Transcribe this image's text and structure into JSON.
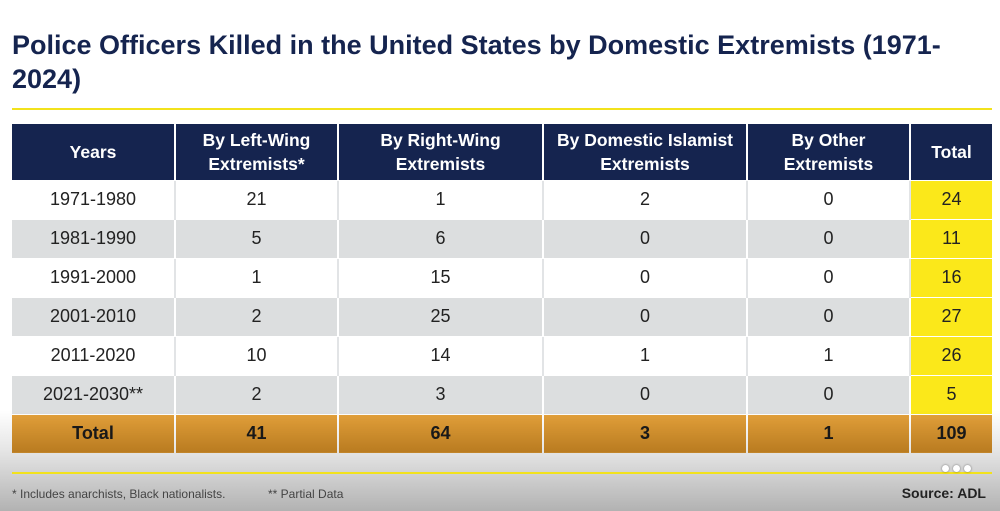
{
  "title": "Police Officers Killed in the United States by Domestic Extremists (1971-2024)",
  "colors": {
    "header_bg": "#15244f",
    "total_col": "#fbe81a",
    "total_row": "#d9952e",
    "rule": "#f2e21c"
  },
  "table": {
    "headers": {
      "years": "Years",
      "left_wing": "By Left-Wing Extremists*",
      "right_wing": "By Right-Wing Extremists",
      "islamist": "By Domestic Islamist Extremists",
      "other": "By Other Extremists",
      "total": "Total"
    },
    "rows": [
      {
        "years": "1971-1980",
        "left_wing": "21",
        "right_wing": "1",
        "islamist": "2",
        "other": "0",
        "total": "24"
      },
      {
        "years": "1981-1990",
        "left_wing": "5",
        "right_wing": "6",
        "islamist": "0",
        "other": "0",
        "total": "11"
      },
      {
        "years": "1991-2000",
        "left_wing": "1",
        "right_wing": "15",
        "islamist": "0",
        "other": "0",
        "total": "16"
      },
      {
        "years": "2001-2010",
        "left_wing": "2",
        "right_wing": "25",
        "islamist": "0",
        "other": "0",
        "total": "27"
      },
      {
        "years": "2011-2020",
        "left_wing": "10",
        "right_wing": "14",
        "islamist": "1",
        "other": "1",
        "total": "26"
      },
      {
        "years": "2021-2030**",
        "left_wing": "2",
        "right_wing": "3",
        "islamist": "0",
        "other": "0",
        "total": "5"
      }
    ],
    "totals": {
      "label": "Total",
      "left_wing": "41",
      "right_wing": "64",
      "islamist": "3",
      "other": "1",
      "total": "109"
    }
  },
  "footer": {
    "note_1": "* Includes anarchists, Black nationalists.",
    "note_2": "** Partial Data",
    "source": "Source: ADL"
  },
  "icons": {
    "more": "more-horizontal-icon"
  }
}
